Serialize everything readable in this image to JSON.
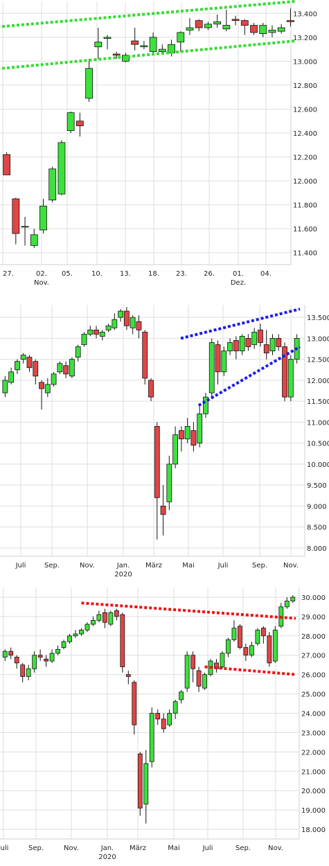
{
  "chart_data": [
    {
      "type": "candlestick",
      "ylim": [
        11300,
        13500
      ],
      "grid": true,
      "yticks": [
        "13.400",
        "13.200",
        "13.000",
        "12.800",
        "12.600",
        "12.400",
        "12.200",
        "12.000",
        "11.800",
        "11.600",
        "11.400"
      ],
      "yticks_values": [
        13400,
        13200,
        13000,
        12800,
        12600,
        12400,
        12200,
        12000,
        11800,
        11600,
        11400
      ],
      "xticks": [
        "27.",
        "02.",
        "05.",
        "10.",
        "13.",
        "18.",
        "23.",
        "26.",
        "01.",
        "04."
      ],
      "xticks_sub": [
        "",
        "Nov.",
        "",
        "",
        "",
        "",
        "",
        "",
        "Dez.",
        ""
      ],
      "trendlines": [
        {
          "color": "#33dd33",
          "from": [
            0,
            13290
          ],
          "to": [
            1,
            13500
          ]
        },
        {
          "color": "#33dd33",
          "from": [
            0,
            12940
          ],
          "to": [
            1,
            13170
          ]
        }
      ],
      "candles": [
        [
          12220,
          12050,
          12240,
          12050
        ],
        [
          11850,
          11560,
          11860,
          11470
        ],
        [
          11620,
          11620,
          11700,
          11460
        ],
        [
          11460,
          11550,
          11600,
          11440
        ],
        [
          11590,
          11790,
          11850,
          11560
        ],
        [
          11840,
          12100,
          12120,
          11820
        ],
        [
          11890,
          12320,
          12340,
          11880
        ],
        [
          12420,
          12570,
          12580,
          12400
        ],
        [
          12500,
          12460,
          12570,
          12370
        ],
        [
          12690,
          12940,
          13020,
          12660
        ],
        [
          13120,
          13160,
          13280,
          13020
        ],
        [
          13190,
          13200,
          13220,
          13100
        ],
        [
          13060,
          13050,
          13080,
          13020
        ],
        [
          13000,
          13050,
          13070,
          12990
        ],
        [
          13170,
          13140,
          13280,
          13090
        ],
        [
          13120,
          13130,
          13170,
          13100
        ],
        [
          13080,
          13200,
          13240,
          13050
        ],
        [
          13080,
          13100,
          13140,
          13070
        ],
        [
          13070,
          13140,
          13180,
          13040
        ],
        [
          13160,
          13240,
          13250,
          13080
        ],
        [
          13260,
          13280,
          13360,
          13220
        ],
        [
          13340,
          13280,
          13350,
          13250
        ],
        [
          13280,
          13310,
          13330,
          13260
        ],
        [
          13310,
          13330,
          13390,
          13280
        ],
        [
          13270,
          13300,
          13430,
          13250
        ],
        [
          13350,
          13340,
          13380,
          13300
        ],
        [
          13340,
          13300,
          13350,
          13220
        ],
        [
          13300,
          13240,
          13320,
          13220
        ],
        [
          13230,
          13300,
          13320,
          13200
        ],
        [
          13240,
          13260,
          13300,
          13200
        ],
        [
          13250,
          13280,
          13310,
          13230
        ],
        [
          13340,
          13330,
          13440,
          13290
        ]
      ]
    },
    {
      "type": "candlestick",
      "ylim": [
        7800,
        13800
      ],
      "grid": true,
      "yticks": [
        "13.500",
        "13.000",
        "12.500",
        "12.000",
        "11.500",
        "11.000",
        "10.500",
        "10.000",
        "9.500",
        "9.000",
        "8.500",
        "8.000"
      ],
      "yticks_values": [
        13500,
        13000,
        12500,
        12000,
        11500,
        11000,
        10500,
        10000,
        9500,
        9000,
        8500,
        8000
      ],
      "xticks": [
        "Juli",
        "Sep.",
        "Nov.",
        "Jan.",
        "März",
        "Mai",
        "Juli",
        "Sep.",
        "Nov."
      ],
      "xticks_sub": [
        "",
        "",
        "",
        "2020",
        "",
        "",
        "",
        "",
        ""
      ],
      "trendlines": [
        {
          "color": "#1a1aee",
          "from": [
            0.6,
            13000
          ],
          "to": [
            1,
            13700
          ]
        },
        {
          "color": "#1a1aee",
          "from": [
            0.66,
            11400
          ],
          "to": [
            1,
            12800
          ]
        }
      ],
      "candles": [
        [
          11700,
          12000,
          12100,
          11600
        ],
        [
          11950,
          12200,
          12300,
          11900
        ],
        [
          12250,
          12450,
          12500,
          12150
        ],
        [
          12500,
          12600,
          12650,
          12400
        ],
        [
          12550,
          12300,
          12600,
          12200
        ],
        [
          12450,
          12100,
          12500,
          11900
        ],
        [
          11950,
          11800,
          12000,
          11300
        ],
        [
          11700,
          11900,
          12050,
          11600
        ],
        [
          11900,
          12150,
          12200,
          11850
        ],
        [
          12200,
          12400,
          12450,
          12150
        ],
        [
          12350,
          12150,
          12450,
          12050
        ],
        [
          12100,
          12500,
          12550,
          12050
        ],
        [
          12550,
          12800,
          12850,
          12450
        ],
        [
          12850,
          13100,
          13150,
          12800
        ],
        [
          13100,
          13200,
          13300,
          13050
        ],
        [
          13200,
          13100,
          13300,
          13000
        ],
        [
          13050,
          13150,
          13200,
          12950
        ],
        [
          13200,
          13300,
          13350,
          13150
        ],
        [
          13250,
          13450,
          13600,
          13200
        ],
        [
          13500,
          13650,
          13700,
          13400
        ],
        [
          13650,
          13300,
          13750,
          13200
        ],
        [
          13250,
          13500,
          13550,
          13100
        ],
        [
          13400,
          13200,
          13550,
          13000
        ],
        [
          13150,
          12050,
          13200,
          11900
        ],
        [
          12000,
          11600,
          12050,
          11500
        ],
        [
          10900,
          9200,
          11000,
          8200
        ],
        [
          9000,
          8800,
          9500,
          8300
        ],
        [
          9100,
          10000,
          10200,
          8900
        ],
        [
          10000,
          10700,
          10900,
          9900
        ],
        [
          10800,
          10600,
          10900,
          10300
        ],
        [
          10600,
          10900,
          11100,
          10500
        ],
        [
          10800,
          10450,
          11000,
          10300
        ],
        [
          10500,
          11200,
          11400,
          10400
        ],
        [
          11200,
          11600,
          11700,
          11100
        ],
        [
          11700,
          12900,
          13000,
          11600
        ],
        [
          12850,
          12200,
          12950,
          11900
        ],
        [
          12200,
          12700,
          12800,
          12100
        ],
        [
          12700,
          12900,
          13000,
          12600
        ],
        [
          12950,
          12700,
          13050,
          12500
        ],
        [
          12700,
          13050,
          13100,
          12600
        ],
        [
          13000,
          12800,
          13100,
          12700
        ],
        [
          12850,
          13150,
          13250,
          12750
        ],
        [
          13200,
          12900,
          13350,
          12800
        ],
        [
          12850,
          12650,
          13200,
          12500
        ],
        [
          12700,
          13000,
          13100,
          12600
        ],
        [
          13000,
          12800,
          13100,
          12700
        ],
        [
          12800,
          11600,
          12900,
          11500
        ],
        [
          11600,
          12500,
          12600,
          11500
        ],
        [
          12500,
          13000,
          13100,
          12400
        ]
      ]
    },
    {
      "type": "candlestick",
      "ylim": [
        17500,
        30500
      ],
      "grid": true,
      "yticks": [
        "30.000",
        "29.000",
        "28.000",
        "27.000",
        "26.000",
        "25.000",
        "24.000",
        "23.000",
        "22.000",
        "21.000",
        "20.000",
        "19.000",
        "18.000"
      ],
      "yticks_values": [
        30000,
        29000,
        28000,
        27000,
        26000,
        25000,
        24000,
        23000,
        22000,
        21000,
        20000,
        19000,
        18000
      ],
      "xticks": [
        "Juli",
        "Sep.",
        "Nov.",
        "Jan.",
        "März",
        "Mai",
        "Juli",
        "Sep.",
        "Nov."
      ],
      "xticks_sub": [
        "",
        "",
        "",
        "2020",
        "",
        "",
        "",
        "",
        ""
      ],
      "trendlines": [
        {
          "color": "#ee1111",
          "from": [
            0.27,
            29700
          ],
          "to": [
            1,
            28900
          ]
        },
        {
          "color": "#ee1111",
          "from": [
            0.69,
            26400
          ],
          "to": [
            1,
            26000
          ]
        }
      ],
      "candles": [
        [
          26900,
          27200,
          27300,
          26700
        ],
        [
          27200,
          27000,
          27400,
          26800
        ],
        [
          26900,
          26600,
          27000,
          26300
        ],
        [
          26500,
          25900,
          26600,
          25600
        ],
        [
          25900,
          26300,
          26500,
          25700
        ],
        [
          26300,
          27000,
          27200,
          26100
        ],
        [
          27000,
          26900,
          27300,
          26700
        ],
        [
          26800,
          26700,
          27000,
          26400
        ],
        [
          26700,
          27100,
          27300,
          26600
        ],
        [
          27100,
          27300,
          27500,
          27000
        ],
        [
          27400,
          27700,
          27800,
          27300
        ],
        [
          27700,
          28000,
          28100,
          27600
        ],
        [
          28000,
          28100,
          28300,
          27900
        ],
        [
          28100,
          28300,
          28400,
          28000
        ],
        [
          28300,
          28600,
          28700,
          28200
        ],
        [
          28600,
          28800,
          29000,
          28500
        ],
        [
          28800,
          29100,
          29300,
          28700
        ],
        [
          29200,
          28700,
          29400,
          28400
        ],
        [
          28600,
          29200,
          29300,
          28500
        ],
        [
          29300,
          29000,
          29400,
          28800
        ],
        [
          29100,
          26400,
          29200,
          26100
        ],
        [
          26000,
          25900,
          26200,
          25500
        ],
        [
          25600,
          23400,
          25700,
          22900
        ],
        [
          21900,
          19100,
          22000,
          18700
        ],
        [
          19300,
          21400,
          22100,
          18300
        ],
        [
          21500,
          24000,
          24300,
          21200
        ],
        [
          24000,
          23700,
          24200,
          23400
        ],
        [
          23700,
          23200,
          24000,
          23000
        ],
        [
          23400,
          24000,
          24200,
          23300
        ],
        [
          24000,
          24600,
          24700,
          23700
        ],
        [
          24700,
          25100,
          25200,
          24500
        ],
        [
          25300,
          27000,
          27200,
          25100
        ],
        [
          27000,
          26300,
          27200,
          25600
        ],
        [
          26200,
          25400,
          26400,
          25100
        ],
        [
          25300,
          26000,
          26100,
          25200
        ],
        [
          26000,
          26700,
          26800,
          25900
        ],
        [
          26600,
          26300,
          26800,
          26100
        ],
        [
          26400,
          27100,
          27200,
          26300
        ],
        [
          27100,
          27800,
          27900,
          26900
        ],
        [
          27800,
          28400,
          28800,
          27700
        ],
        [
          28500,
          27400,
          28600,
          27300
        ],
        [
          27400,
          27000,
          27600,
          26700
        ],
        [
          27000,
          27500,
          27700,
          26900
        ],
        [
          27600,
          28300,
          28400,
          27500
        ],
        [
          28400,
          28000,
          28500,
          27600
        ],
        [
          28000,
          26600,
          28200,
          26400
        ],
        [
          26700,
          28300,
          28500,
          26600
        ],
        [
          28500,
          29500,
          29700,
          28400
        ],
        [
          29500,
          29800,
          30000,
          29400
        ],
        [
          29800,
          30000,
          30100,
          29700
        ]
      ]
    }
  ]
}
